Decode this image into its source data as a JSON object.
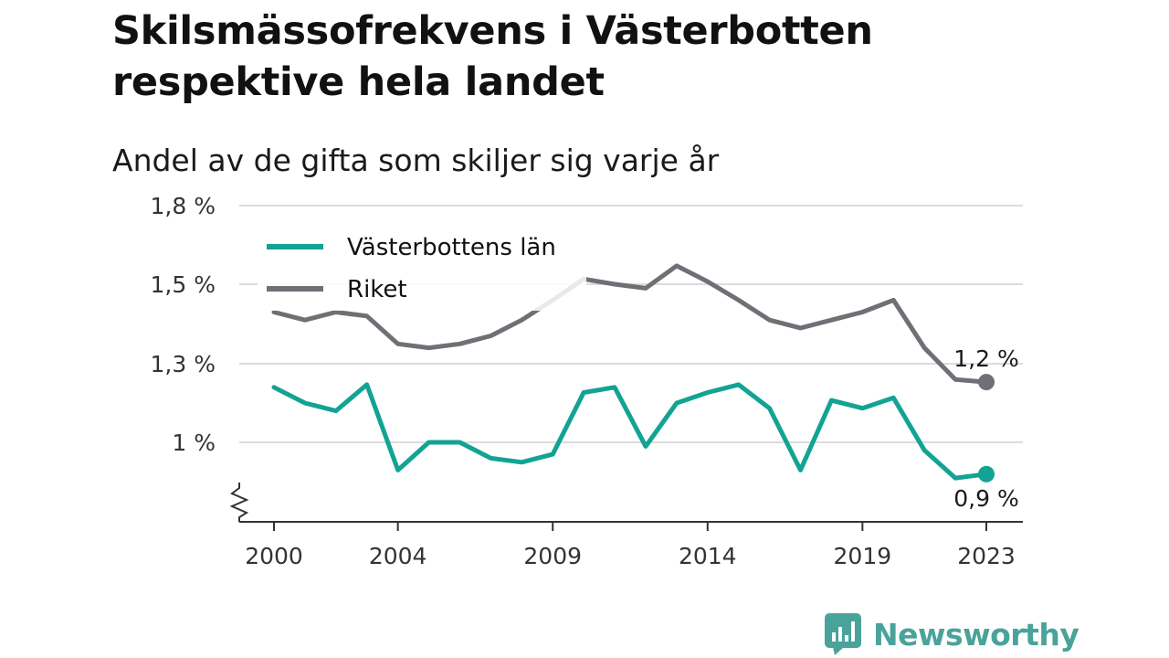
{
  "chart_data": {
    "type": "line",
    "title": "Skilsmässofrekvens i Västerbotten respektive hela landet",
    "subtitle": "Andel av de gifta som skiljer sig varje år",
    "x": [
      2000,
      2001,
      2002,
      2003,
      2004,
      2005,
      2006,
      2007,
      2008,
      2009,
      2010,
      2011,
      2012,
      2013,
      2014,
      2015,
      2016,
      2017,
      2018,
      2019,
      2020,
      2021,
      2022,
      2023
    ],
    "x_ticks": [
      {
        "value": 2000,
        "label": "2000"
      },
      {
        "value": 2004,
        "label": "2004"
      },
      {
        "value": 2009,
        "label": "2009"
      },
      {
        "value": 2014,
        "label": "2014"
      },
      {
        "value": 2019,
        "label": "2019"
      },
      {
        "value": 2023,
        "label": "2023"
      }
    ],
    "y_ticks": [
      {
        "value": 1.0,
        "label": "1 %"
      },
      {
        "value": 1.3,
        "label": "1,3 %"
      },
      {
        "value": 1.5,
        "label": "1,5 %"
      },
      {
        "value": 1.8,
        "label": "1,8 %"
      }
    ],
    "ylim": [
      0.8,
      1.8
    ],
    "axis_break": true,
    "grid": true,
    "legend_position": "top-left",
    "series": [
      {
        "name": "Västerbottens län",
        "color": "#12a394",
        "values": [
          1.21,
          1.15,
          1.12,
          1.22,
          0.93,
          1.0,
          1.0,
          0.96,
          0.95,
          0.97,
          1.19,
          1.21,
          0.99,
          1.15,
          1.19,
          1.22,
          1.13,
          0.93,
          1.16,
          1.13,
          1.17,
          0.98,
          0.91,
          0.92
        ],
        "end_label": "0,9 %"
      },
      {
        "name": "Riket",
        "color": "#6f6f75",
        "values": [
          1.43,
          1.41,
          1.43,
          1.42,
          1.35,
          1.34,
          1.35,
          1.37,
          1.41,
          1.46,
          1.52,
          1.5,
          1.49,
          1.57,
          1.51,
          1.46,
          1.41,
          1.39,
          1.41,
          1.43,
          1.46,
          1.34,
          1.24,
          1.23
        ],
        "end_label": "1,2 %"
      }
    ]
  },
  "brand": {
    "name": "Newsworthy",
    "color": "#4aa39a",
    "icon": "bar-chart-bubble-icon"
  }
}
